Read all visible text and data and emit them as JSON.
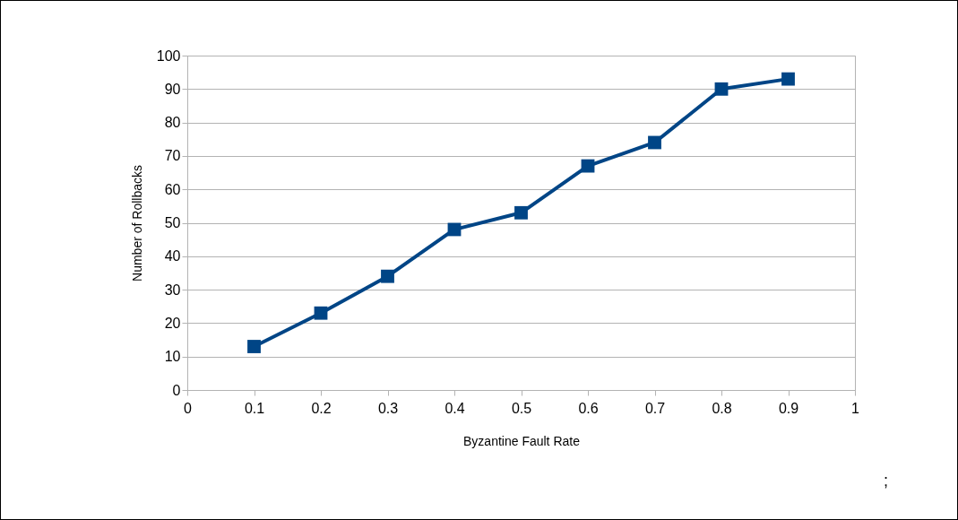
{
  "chart_data": {
    "type": "line",
    "xlabel": "Byzantine Fault Rate",
    "ylabel": "Number of Rollbacks",
    "x": [
      0.1,
      0.2,
      0.3,
      0.4,
      0.5,
      0.6,
      0.7,
      0.8,
      0.9
    ],
    "series": [
      {
        "color": "#004586",
        "values": [
          13,
          23,
          34,
          48,
          53,
          67,
          74,
          90,
          93
        ]
      }
    ],
    "xlim": [
      0,
      1
    ],
    "xticks": [
      0,
      0.1,
      0.2,
      0.3,
      0.4,
      0.5,
      0.6,
      0.7,
      0.8,
      0.9,
      1
    ],
    "ylim": [
      0,
      100
    ],
    "yticks": [
      0,
      10,
      20,
      30,
      40,
      50,
      60,
      70,
      80,
      90,
      100
    ],
    "grid": "y",
    "marker": "square",
    "line_style": "solid",
    "annotations": [
      ";"
    ]
  }
}
